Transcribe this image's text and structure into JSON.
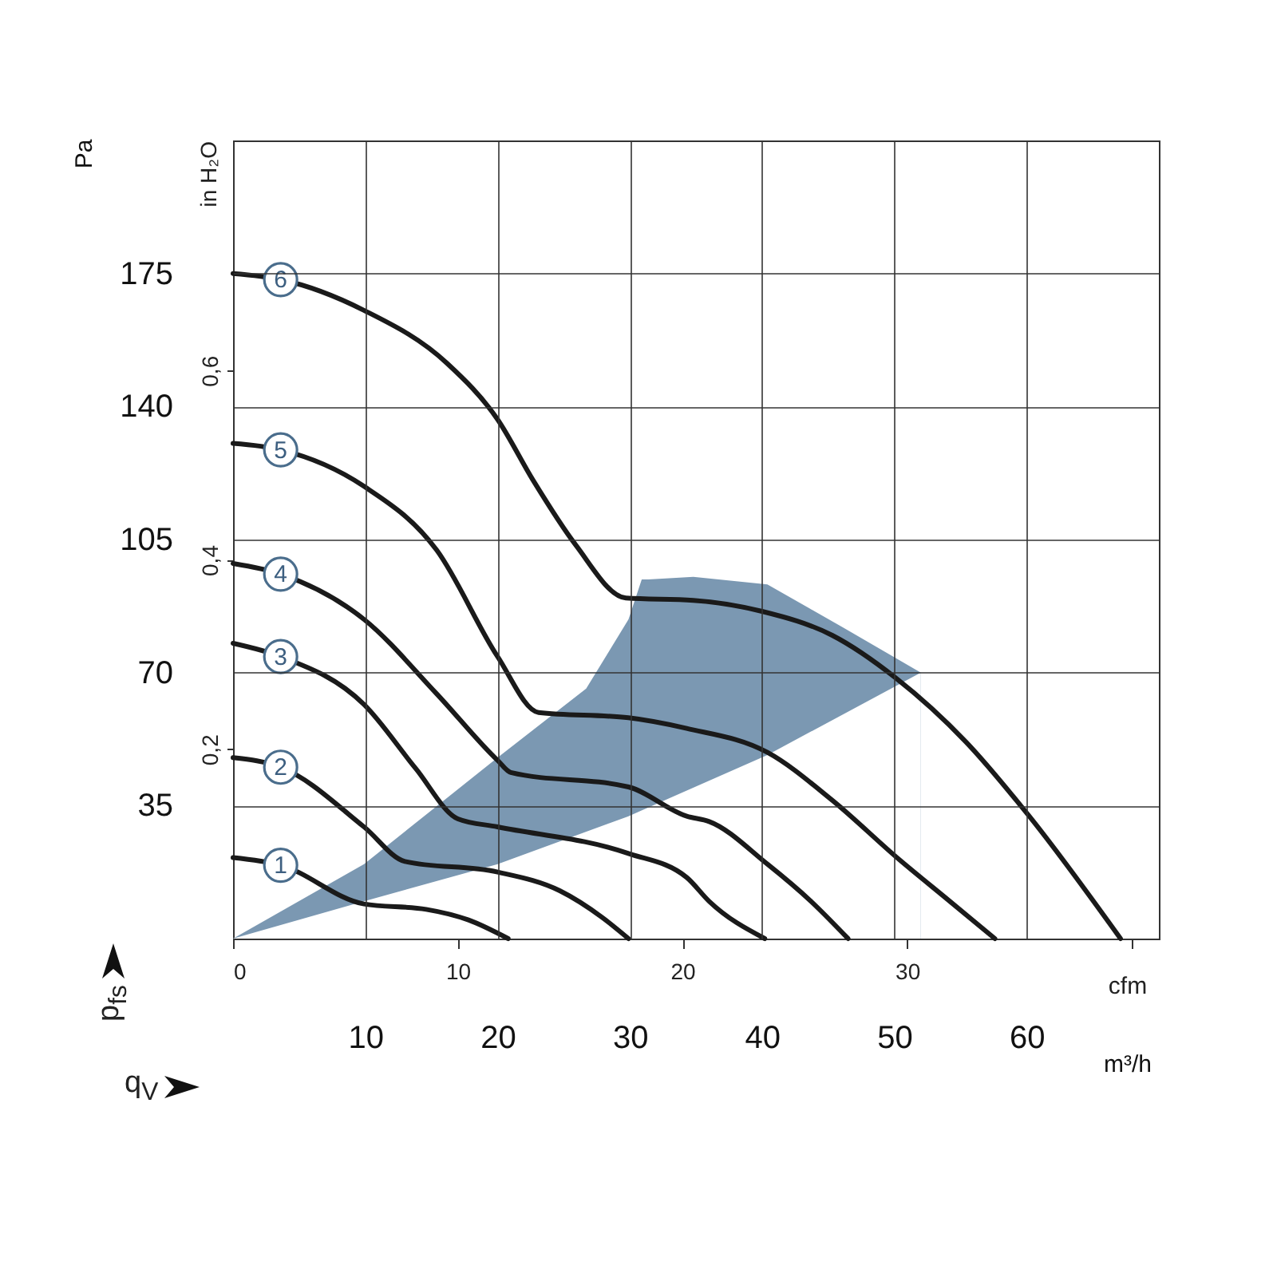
{
  "chart_data": {
    "type": "line",
    "xlabel": "m³/h",
    "ylabel": "Pa",
    "x2label": "cfm",
    "y2label": "in H₂O",
    "xlim": [
      0,
      70
    ],
    "xticks": [
      10,
      20,
      30,
      40,
      50,
      60
    ],
    "x2lim": [
      0,
      41.2
    ],
    "x2ticks": [
      0,
      10,
      20,
      30,
      {
        "value": 40,
        "label": null
      }
    ],
    "ylim": [
      0,
      210
    ],
    "yticks": [
      35,
      70,
      105,
      140,
      175
    ],
    "y2lim": [
      0,
      0.843
    ],
    "y2ticks": [
      {
        "value": 0.2,
        "label": "0,2"
      },
      {
        "value": 0.4,
        "label": "0,4"
      },
      {
        "value": 0.6,
        "label": "0,6"
      }
    ],
    "grid": true,
    "annotations": [
      "p$_{fs}$",
      "q$_{V}$"
    ],
    "series": [
      {
        "type": "area",
        "color": "#7b98b2",
        "x": [
          0,
          9.9,
          20,
          26.7,
          29.9,
          30.9,
          31.4,
          34.8,
          40.4,
          46.1,
          52
        ],
        "values": [
          0,
          19.6,
          47.6,
          65.8,
          84,
          94.5,
          94.5,
          95.2,
          93.2,
          81.9,
          70
        ]
      },
      {
        "type": "area",
        "color": "#ffffff",
        "x": [
          0,
          9.9,
          20,
          29.9,
          40.4,
          52
        ],
        "values": [
          0,
          9.8,
          19.6,
          32.2,
          48.3,
          70
        ]
      },
      {
        "name": "1",
        "color": "#1a1a1a",
        "x": [
          0,
          3.6,
          9.9,
          14.6,
          17.8,
          20.8
        ],
        "values": [
          21.3,
          19.3,
          9.1,
          7.7,
          4.9,
          0
        ]
      },
      {
        "name": "2",
        "color": "#1a1a1a",
        "x": [
          0,
          3.6,
          9.9,
          13,
          20,
          24.7,
          27.9,
          29.9
        ],
        "values": [
          47.6,
          45.1,
          29.4,
          20.3,
          17.5,
          12.6,
          5.6,
          0
        ]
      },
      {
        "name": "3",
        "color": "#1a1a1a",
        "x": [
          0,
          3.6,
          9.9,
          13.8,
          17,
          20,
          29.9,
          34.3,
          36,
          40.2
        ],
        "values": [
          77.7,
          74.2,
          61.6,
          44.8,
          31.5,
          29.4,
          22.4,
          16.1,
          9.8,
          0
        ]
      },
      {
        "name": "4",
        "color": "#1a1a1a",
        "x": [
          0,
          3.6,
          9.9,
          15.4,
          20,
          21,
          29.9,
          34.3,
          36,
          40.4,
          43.7,
          46.5
        ],
        "values": [
          98.7,
          95.9,
          84,
          64.4,
          46.9,
          43.7,
          39.9,
          32.2,
          30.8,
          19.6,
          9.8,
          0
        ]
      },
      {
        "name": "5",
        "color": "#1a1a1a",
        "x": [
          0,
          3.6,
          9.9,
          15.4,
          20,
          23.1,
          29.9,
          34.3,
          40.4,
          45.3,
          50.3,
          54.2,
          57.6
        ],
        "values": [
          130.3,
          128.6,
          119,
          102.2,
          74.2,
          59.5,
          58.1,
          55.3,
          49,
          36.4,
          21,
          9.8,
          0
        ]
      },
      {
        "name": "6",
        "color": "#1a1a1a",
        "x": [
          0,
          3.6,
          9.9,
          16.2,
          20,
          22.7,
          25.9,
          29.7,
          34.8,
          40,
          45.3,
          50.1,
          55.4,
          60.2,
          67.1
        ],
        "values": [
          175,
          173.4,
          165.3,
          151.3,
          136.6,
          120.5,
          103.6,
          89.6,
          89,
          86.1,
          79.8,
          68.6,
          51.8,
          32.2,
          0
        ]
      }
    ]
  }
}
